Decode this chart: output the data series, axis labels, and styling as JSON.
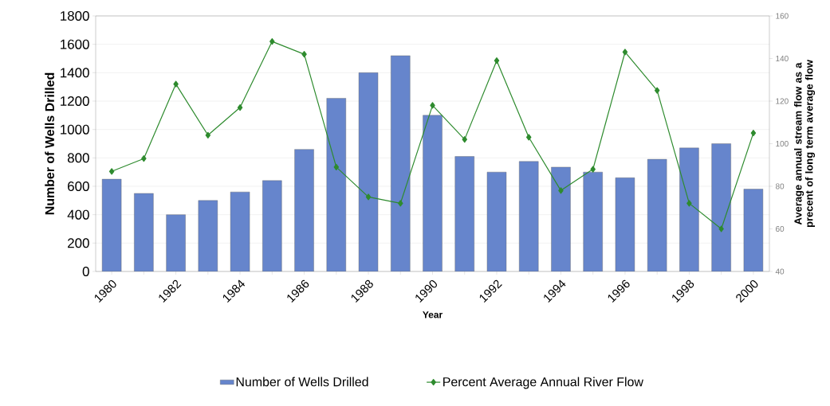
{
  "chart_data": {
    "type": "bar",
    "xlabel": "Year",
    "ylabel": "Number of Wells Drilled",
    "y2label": "Average annual stream flow as a precent of long term average flow",
    "categories": [
      "1980",
      null,
      "1982",
      null,
      "1984",
      null,
      "1986",
      null,
      "1988",
      null,
      "1990",
      null,
      "1992",
      null,
      "1994",
      null,
      "1996",
      null,
      "1998",
      null,
      "2000"
    ],
    "series": [
      {
        "name": "Number of Wells Drilled",
        "color": "#6685cc",
        "values": [
          650,
          550,
          400,
          500,
          560,
          640,
          860,
          1220,
          1400,
          1520,
          1100,
          810,
          700,
          775,
          735,
          700,
          660,
          790,
          870,
          900,
          580
        ]
      },
      {
        "name": "Percent Average Annual River Flow",
        "type": "line",
        "axis": "y2",
        "color": "#2e8b2e",
        "marker": "diamond",
        "values": [
          87,
          93,
          128,
          104,
          117,
          148,
          142,
          89,
          75,
          72,
          118,
          102,
          139,
          103,
          78,
          88,
          143,
          125,
          72,
          60,
          105
        ]
      }
    ],
    "ylim": [
      0,
      1800
    ],
    "yticks": [
      0,
      200,
      400,
      600,
      800,
      1000,
      1200,
      1400,
      1600,
      1800
    ],
    "y2lim": [
      40,
      160
    ],
    "y2ticks": [
      40,
      60,
      80,
      100,
      120,
      140,
      160
    ],
    "grid": "y",
    "legend": "bottom"
  }
}
